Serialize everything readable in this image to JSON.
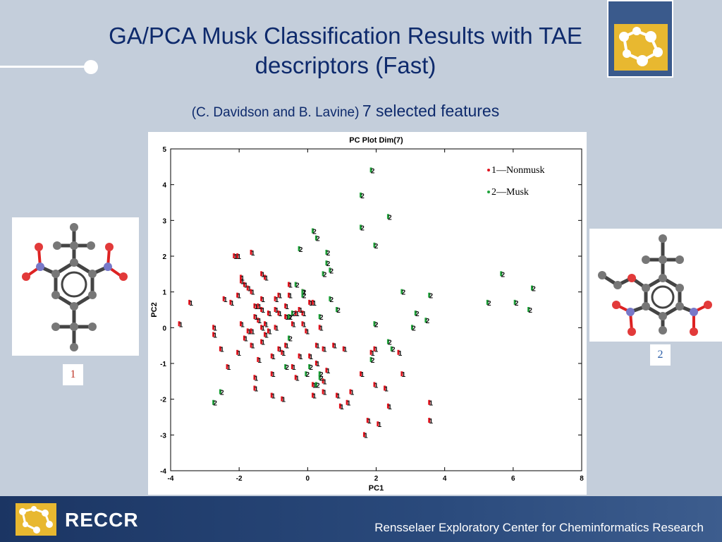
{
  "slide": {
    "title": "GA/PCA Musk Classification Results with TAE descriptors  (Fast)",
    "authors": "(C. Davidson and B. Lavine)",
    "features": "7 selected features"
  },
  "molecules": {
    "label1": "1",
    "label2": "2"
  },
  "footer": {
    "brand": "RECCR",
    "center_name": "Rensselaer Exploratory Center for Cheminformatics Research"
  },
  "colors": {
    "background": "#c4cedb",
    "title": "#0e2a6c",
    "nonmusk": "#e0141e",
    "musk": "#1fa23a",
    "footer": "#1b3563"
  },
  "chart_data": {
    "type": "scatter",
    "title": "PC Plot Dim(7)",
    "xlabel": "PC1",
    "ylabel": "PC2",
    "xlim": [
      -4,
      8
    ],
    "ylim": [
      -4,
      5
    ],
    "xticks": [
      "-4",
      "-2",
      "0",
      "2",
      "4",
      "6",
      "8"
    ],
    "yticks": [
      "-4",
      "-3",
      "-2",
      "-1",
      "0",
      "1",
      "2",
      "3",
      "4",
      "5"
    ],
    "legend_position": "top-right",
    "series": [
      {
        "name": "1—Nonmusk",
        "marker": "1",
        "color": "#e0141e",
        "x": [
          -3.7,
          -3.4,
          -2.7,
          -2.7,
          -2.5,
          -2.4,
          -2.3,
          -2.2,
          -2.0,
          -2.0,
          -1.9,
          -1.9,
          -1.8,
          -1.8,
          -1.7,
          -1.6,
          -1.6,
          -1.5,
          -1.5,
          -1.5,
          -1.4,
          -1.4,
          -1.3,
          -1.3,
          -1.3,
          -1.2,
          -1.2,
          -1.2,
          -1.1,
          -1.1,
          -1.0,
          -1.0,
          -1.0,
          -0.9,
          -0.9,
          -0.8,
          -0.8,
          -0.8,
          -0.7,
          -0.7,
          -0.6,
          -0.6,
          -0.5,
          -0.5,
          -0.4,
          -0.4,
          -0.3,
          -0.3,
          -0.2,
          -0.1,
          -0.1,
          0.0,
          0.1,
          0.1,
          0.2,
          0.2,
          0.3,
          0.4,
          0.5,
          0.5,
          0.6,
          0.8,
          0.9,
          1.0,
          1.1,
          1.2,
          1.3,
          1.6,
          1.7,
          1.8,
          1.9,
          2.0,
          2.0,
          2.1,
          2.3,
          2.4,
          2.7,
          2.8,
          3.6,
          3.6,
          -2.1,
          -1.6,
          -1.9,
          -1.3,
          -0.9,
          -2.0,
          -1.6,
          -1.5,
          -0.6,
          -0.1,
          0.3,
          0.5,
          -1.4,
          -0.2,
          -0.5,
          -1.7,
          -1.3,
          0.2
        ],
        "y": [
          0.1,
          0.7,
          0.0,
          -0.2,
          -0.6,
          0.8,
          -1.1,
          0.7,
          -0.7,
          2.0,
          1.4,
          0.1,
          1.2,
          -0.3,
          1.1,
          -0.1,
          -0.5,
          0.6,
          -1.4,
          -1.7,
          0.2,
          -0.9,
          0.8,
          0.5,
          -0.4,
          1.4,
          -0.2,
          0.1,
          0.4,
          -0.1,
          -0.8,
          -1.3,
          -1.9,
          0.0,
          0.5,
          -0.6,
          0.9,
          0.4,
          -0.7,
          -2.0,
          0.6,
          -0.5,
          0.3,
          1.2,
          0.1,
          -1.1,
          0.4,
          -1.4,
          -0.8,
          1.0,
          0.1,
          -0.1,
          0.7,
          -0.8,
          -1.6,
          -1.9,
          -0.5,
          0.0,
          -0.6,
          -1.8,
          -1.2,
          -0.5,
          -1.9,
          -2.2,
          -0.6,
          -2.1,
          -1.8,
          -1.3,
          -3.0,
          -2.6,
          -0.7,
          -1.6,
          -0.6,
          -2.7,
          -1.7,
          -2.2,
          -0.7,
          -1.3,
          -2.1,
          -2.6,
          2.0,
          2.1,
          1.3,
          1.5,
          0.8,
          0.9,
          1.0,
          0.3,
          0.3,
          0.4,
          -1.0,
          -1.5,
          0.6,
          0.5,
          0.9,
          -0.1,
          0.0,
          0.7
        ]
      },
      {
        "name": "2—Musk",
        "marker": "2",
        "color": "#1fa23a",
        "x": [
          -2.7,
          -2.5,
          -0.6,
          -0.5,
          -0.4,
          -0.3,
          -0.2,
          -0.1,
          0.0,
          0.1,
          0.2,
          0.3,
          0.4,
          0.4,
          0.5,
          0.6,
          0.6,
          0.7,
          0.7,
          0.9,
          1.6,
          1.6,
          1.9,
          2.0,
          2.0,
          2.4,
          2.5,
          2.8,
          3.1,
          3.2,
          3.6,
          5.3,
          5.7,
          6.1,
          6.5,
          6.6,
          0.3,
          -0.5,
          -0.1,
          0.4,
          1.9,
          2.0,
          2.4,
          3.5
        ],
        "y": [
          -2.1,
          -1.8,
          -1.1,
          0.3,
          0.4,
          1.2,
          2.2,
          1.0,
          -1.3,
          -1.1,
          2.7,
          2.5,
          -1.4,
          -1.3,
          1.5,
          2.1,
          1.8,
          1.6,
          0.8,
          0.5,
          3.7,
          2.8,
          4.4,
          0.1,
          2.3,
          3.1,
          -0.6,
          1.0,
          0.0,
          0.4,
          0.9,
          0.7,
          1.5,
          0.7,
          0.5,
          1.1,
          -1.6,
          -0.3,
          0.9,
          0.3,
          -0.9,
          0.1,
          -0.4,
          0.2
        ]
      }
    ]
  }
}
